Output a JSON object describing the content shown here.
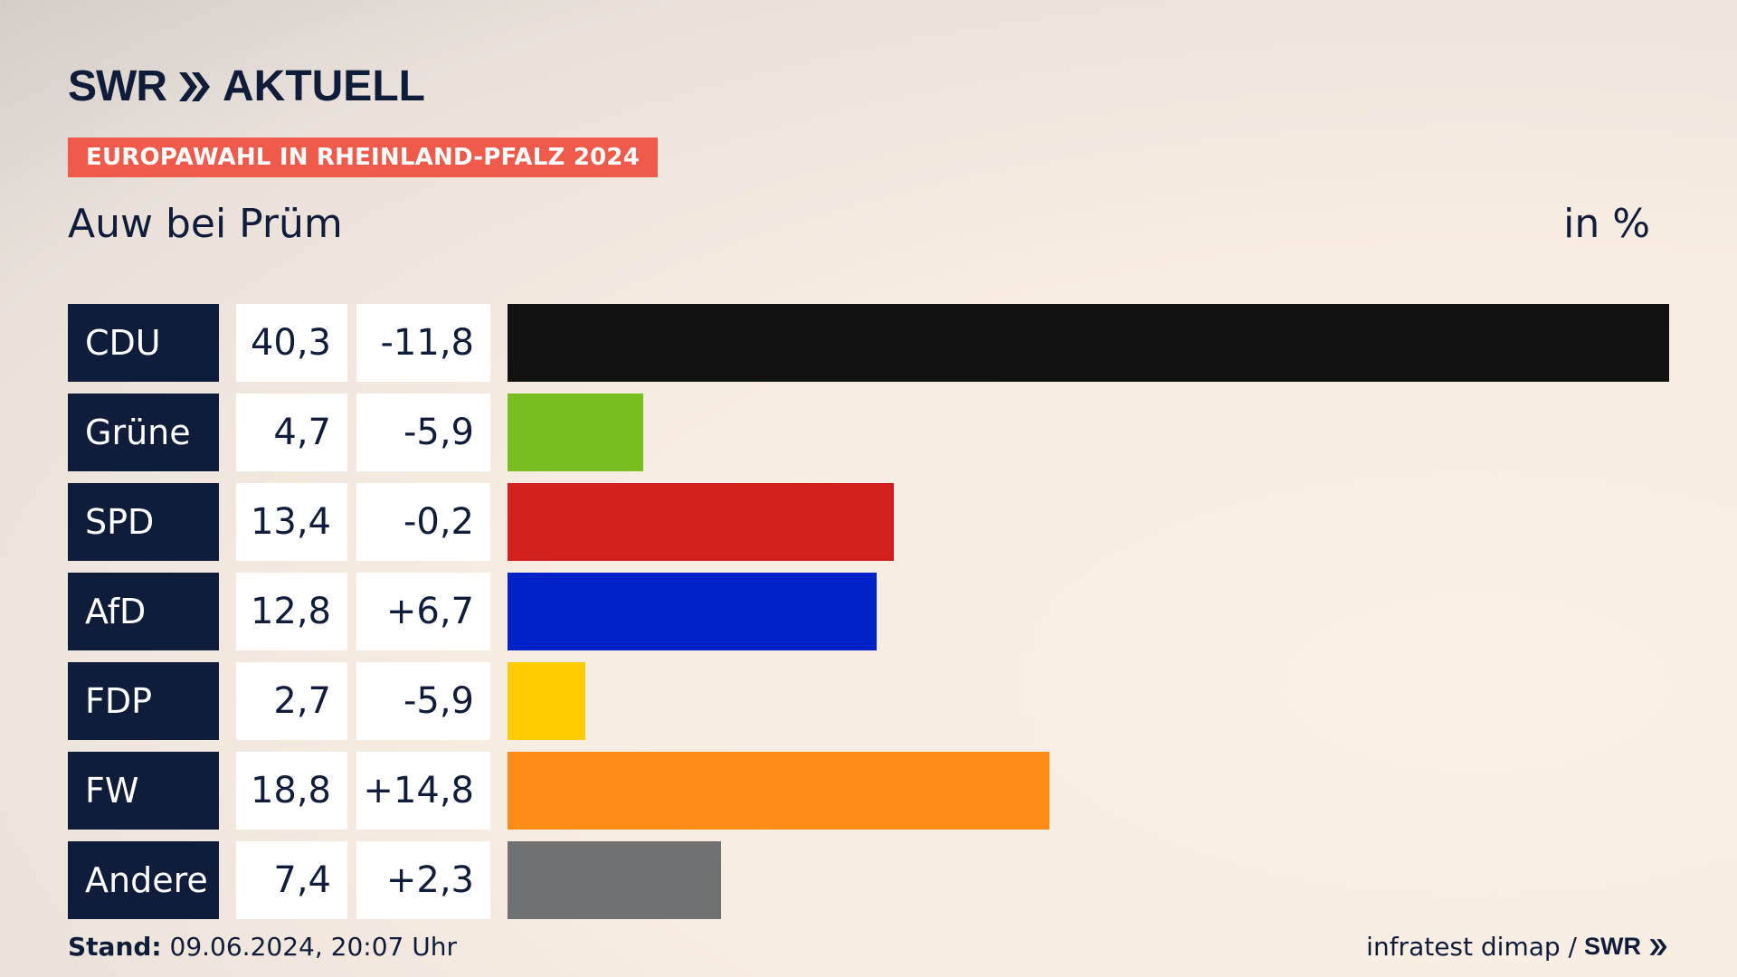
{
  "brand": {
    "swr": "SWR",
    "aktuell": "AKTUELL",
    "color": "#0f1c3a"
  },
  "badge": {
    "text": "EUROPAWAHL IN RHEINLAND-PFALZ 2024",
    "color": "#f05a4a"
  },
  "place": "Auw bei Prüm",
  "unit": "in %",
  "footer": {
    "stand_label": "Stand:",
    "stand_value": " 09.06.2024, 20:07 Uhr",
    "source": "infratest dimap /",
    "swr": "SWR"
  },
  "chart_data": {
    "type": "bar",
    "title": "Auw bei Prüm",
    "unit": "in %",
    "categories": [
      "CDU",
      "Grüne",
      "SPD",
      "AfD",
      "FDP",
      "FW",
      "Andere"
    ],
    "series": [
      {
        "values": [
          40.3,
          4.7,
          13.4,
          12.8,
          2.7,
          18.8,
          7.4
        ]
      }
    ],
    "values_text": [
      "40,3",
      "4,7",
      "13,4",
      "12,8",
      "2,7",
      "18,8",
      "7,4"
    ],
    "diff": [
      -11.8,
      -5.9,
      -0.2,
      6.7,
      -5.9,
      14.8,
      2.3
    ],
    "diff_text": [
      "-11,8",
      "-5,9",
      "-0,2",
      "+6,7",
      "-5,9",
      "+14,8",
      "+2,3"
    ],
    "colors": [
      "#121212",
      "#78be1e",
      "#d41f1f",
      "#0020c8",
      "#ffcc00",
      "#ff8c19",
      "#707173"
    ],
    "orientation": "horizontal"
  }
}
